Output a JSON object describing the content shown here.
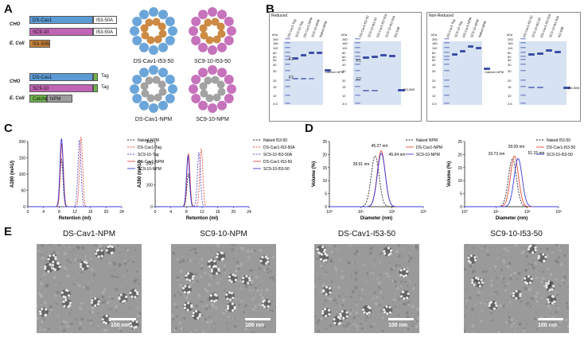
{
  "panels": {
    "a": "A",
    "b": "B",
    "c": "C",
    "d": "D",
    "e": "E"
  },
  "panel_a": {
    "cho1": "CHO",
    "cho2": "CHO",
    "ecoli1": "E. Coli",
    "ecoli2": "E. Coli",
    "c1_main": "DS-Cav1",
    "c1_tag": "I53-50A",
    "c2_main": "SC9-10",
    "c2_tag": "I53-50A",
    "c3_main": "I53-50B",
    "c4_main": "DS-Cav1",
    "c4_tag": "Tag",
    "c5_main": "SC9-10",
    "c5_tag": "Tag",
    "c6_catcher": "Catcher",
    "c6_npm": "NPM",
    "s1": "DS-Cav1-I53-50",
    "s2": "SC9-10-I53-50",
    "s3": "DS-Cav1-NPM",
    "s4": "SC9-10-NPM",
    "colors": {
      "blue": "#5b9bd5",
      "pink": "#c064b4",
      "orange": "#c9843a",
      "green": "#6fb24a",
      "grey": "#9d9d9d"
    }
  },
  "panel_b": {
    "reduced": "Reduced",
    "non_reduced": "Non-Reduced",
    "kda": "kDa",
    "markers": [
      "260",
      "160",
      "110",
      "80",
      "60",
      "50",
      "40",
      "30",
      "20",
      "15",
      "10",
      "3.5"
    ],
    "catcher_npm": "Catcher-NPM",
    "i53_50b": "I53-50B",
    "f1": "F1",
    "f2": "F2",
    "lanes_g1": [
      "DS-Cav1-Tag",
      "SC9-10-Tag",
      "DS-Cav1-NPM",
      "SC9-10-NPM",
      "Naked NPM"
    ],
    "lanes_g2": [
      "DS-Cav1-I53-50",
      "SC9-10-I53-50",
      "DS-Cav1-I53-50A",
      "SC9-10-I53-50A",
      "I53-50B"
    ]
  },
  "chart_data": [
    {
      "type": "line",
      "title": "C-left",
      "xlabel": "Retention (ml)",
      "ylabel": "A280 (mAU)",
      "xlim": [
        0,
        24
      ],
      "ylim": [
        0,
        200
      ],
      "xticks": [
        "0",
        "4",
        "8",
        "12",
        "16",
        "20",
        "24"
      ],
      "yticks": [
        "0",
        "50",
        "100",
        "150",
        "200"
      ],
      "series": [
        {
          "name": "Naked NPM",
          "color": "#222222",
          "dash": true,
          "peak": 8.6,
          "height": 145
        },
        {
          "name": "DS-Cav1-Tag",
          "color": "#e84c3d",
          "dash": true,
          "peak": 13.6,
          "height": 215
        },
        {
          "name": "SC9-10-Tag",
          "color": "#5a4fcf",
          "dash": true,
          "peak": 13.2,
          "height": 205
        },
        {
          "name": "DS-Cav1-NPM",
          "color": "#e84c3d",
          "dash": false,
          "peak": 8.7,
          "height": 195
        },
        {
          "name": "SC9-10-NPM",
          "color": "#3b3bdc",
          "dash": false,
          "peak": 8.6,
          "height": 210
        }
      ]
    },
    {
      "type": "line",
      "title": "C-right",
      "xlabel": "Retention (ml)",
      "ylabel": "A280 (mAU)",
      "xlim": [
        0,
        24
      ],
      "ylim": [
        0,
        300
      ],
      "xticks": [
        "0",
        "4",
        "8",
        "12",
        "16",
        "20",
        "24"
      ],
      "yticks": [
        "0",
        "100",
        "200",
        "300"
      ],
      "series": [
        {
          "name": "Naked I53-50",
          "color": "#222222",
          "dash": true,
          "peak": 8.5,
          "height": 150
        },
        {
          "name": "DS-Cav1-I53-50A",
          "color": "#e84c3d",
          "dash": true,
          "peak": 11.8,
          "height": 265
        },
        {
          "name": "SC9-10-I53-50A",
          "color": "#5a4fcf",
          "dash": true,
          "peak": 11.2,
          "height": 250
        },
        {
          "name": "DS-Cav1-I53-50",
          "color": "#e84c3d",
          "dash": false,
          "peak": 8.5,
          "height": 245
        },
        {
          "name": "SC9-10-I53-50",
          "color": "#3b3bdc",
          "dash": false,
          "peak": 8.4,
          "height": 235
        }
      ]
    },
    {
      "type": "line",
      "title": "D-left",
      "xlabel": "Diameter (nm)",
      "ylabel": "Volume (%)",
      "xscale": "log",
      "xlim": [
        1,
        1000
      ],
      "ylim": [
        0,
        25
      ],
      "xticks": [
        "10⁰",
        "10¹",
        "10²",
        "10³"
      ],
      "yticks": [
        "0",
        "5",
        "10",
        "15",
        "20",
        "25"
      ],
      "annotations": [
        "28.91 nm",
        "45.27 nm",
        "45.64 nm"
      ],
      "series": [
        {
          "name": "Naked NPM",
          "color": "#222222",
          "dash": true,
          "peak": 28.91,
          "height": 19.5
        },
        {
          "name": "DS-Cav1-NPM",
          "color": "#e84c3d",
          "dash": false,
          "peak": 45.27,
          "height": 21.5
        },
        {
          "name": "SC9-10-NPM",
          "color": "#3b3bdc",
          "dash": false,
          "peak": 45.64,
          "height": 20.5
        }
      ]
    },
    {
      "type": "line",
      "title": "D-right",
      "xlabel": "Diameter (nm)",
      "ylabel": "Volume (%)",
      "xscale": "log",
      "xlim": [
        1,
        1000
      ],
      "ylim": [
        0,
        25
      ],
      "xticks": [
        "10⁰",
        "10¹",
        "10²",
        "10³"
      ],
      "yticks": [
        "0",
        "5",
        "10",
        "15",
        "20",
        "25"
      ],
      "annotations": [
        "39.09 nm",
        "33.73 nm",
        "51.15 nm"
      ],
      "series": [
        {
          "name": "Naked I53-50",
          "color": "#222222",
          "dash": true,
          "peak": 33.73,
          "height": 18.5
        },
        {
          "name": "DS-Cav1-I53-50",
          "color": "#e84c3d",
          "dash": false,
          "peak": 39.09,
          "height": 19.5
        },
        {
          "name": "SC9-10-I53-50",
          "color": "#3b3bdc",
          "dash": false,
          "peak": 51.15,
          "height": 18.5
        }
      ]
    }
  ],
  "panel_e": {
    "titles": [
      "DS-Cav1-NPM",
      "SC9-10-NPM",
      "DS-Cav1-I53-50",
      "SC9-10-I53-50"
    ],
    "scale": "100 nm"
  }
}
